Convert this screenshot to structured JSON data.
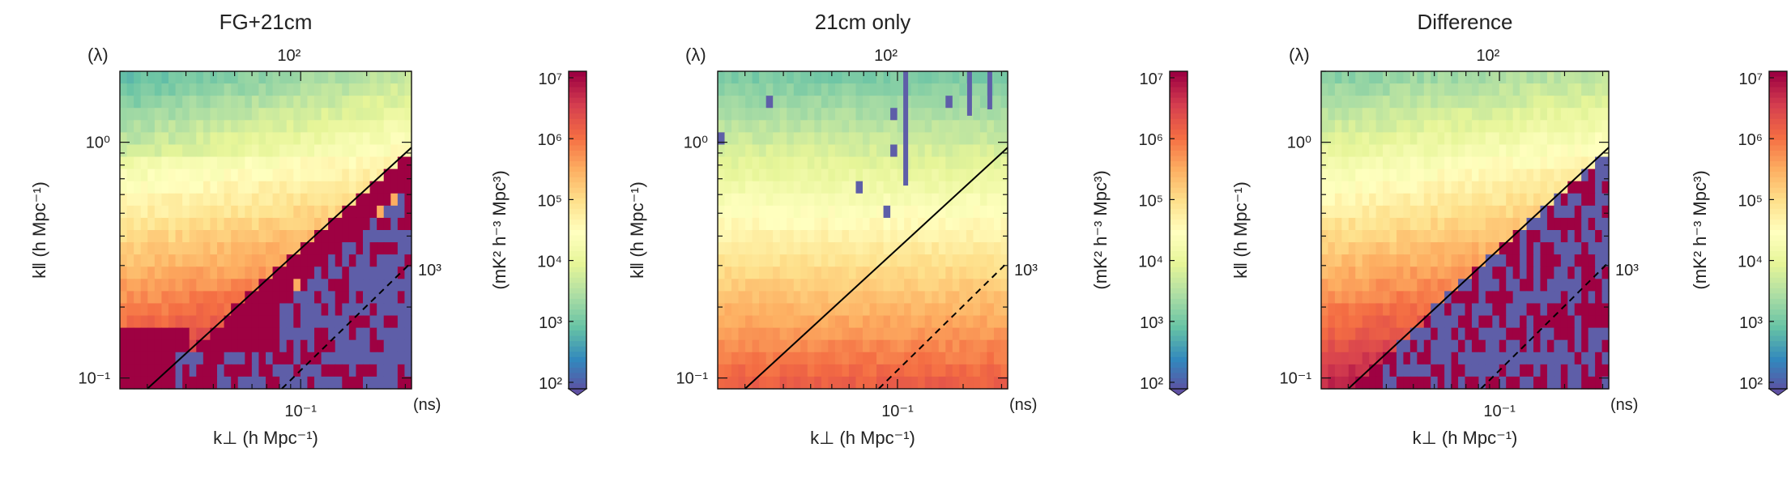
{
  "chart_data": [
    {
      "type": "heatmap",
      "title": "FG+21cm",
      "xlabel": "k⊥ (h Mpc⁻¹)",
      "ylabel": "k‖ (h Mpc⁻¹)",
      "top_axis_label": "(λ)",
      "top_tick": "10²",
      "right_tick": "10³",
      "right_axis_label": "(ns)",
      "xlim": [
        0.015,
        0.32
      ],
      "ylim": [
        0.09,
        2.0
      ],
      "x_tick": "10⁻¹",
      "y_ticks": [
        "10⁰",
        "10⁻¹"
      ],
      "colorbar_label": "(mK² h⁻³ Mpc³)",
      "colorbar_ticks": [
        "10⁷",
        "10⁶",
        "10⁵",
        "10⁴",
        "10³",
        "10²"
      ],
      "wedge_line_start": [
        0.02,
        0.09
      ],
      "wedge_line_end": [
        0.32,
        0.95
      ],
      "dashed_line_start": [
        0.082,
        0.09
      ],
      "dashed_line_end": [
        0.32,
        0.31
      ],
      "style": "fg"
    },
    {
      "type": "heatmap",
      "title": "21cm only",
      "xlabel": "k⊥ (h Mpc⁻¹)",
      "ylabel": "k‖ (h Mpc⁻¹)",
      "top_axis_label": "(λ)",
      "top_tick": "10²",
      "right_tick": "10³",
      "right_axis_label": "(ns)",
      "xlim": [
        0.015,
        0.32
      ],
      "ylim": [
        0.09,
        2.0
      ],
      "x_tick": "10⁻¹",
      "y_ticks": [
        "10⁰",
        "10⁻¹"
      ],
      "colorbar_label": "(mK² h⁻³ Mpc³)",
      "colorbar_ticks": [
        "10⁷",
        "10⁶",
        "10⁵",
        "10⁴",
        "10³",
        "10²"
      ],
      "wedge_line_start": [
        0.02,
        0.09
      ],
      "wedge_line_end": [
        0.32,
        0.95
      ],
      "dashed_line_start": [
        0.082,
        0.09
      ],
      "dashed_line_end": [
        0.32,
        0.31
      ],
      "style": "21cm"
    },
    {
      "type": "heatmap",
      "title": "Difference",
      "xlabel": "k⊥ (h Mpc⁻¹)",
      "ylabel": "k‖ (h Mpc⁻¹)",
      "top_axis_label": "(λ)",
      "top_tick": "10²",
      "right_tick": "10³",
      "right_axis_label": "(ns)",
      "xlim": [
        0.015,
        0.32
      ],
      "ylim": [
        0.09,
        2.0
      ],
      "x_tick": "10⁻¹",
      "y_ticks": [
        "10⁰",
        "10⁻¹"
      ],
      "colorbar_label": "(mK² h⁻³ Mpc³)",
      "colorbar_ticks": [
        "10⁷",
        "10⁶",
        "10⁵",
        "10⁴",
        "10³",
        "10²"
      ],
      "wedge_line_start": [
        0.02,
        0.09
      ],
      "wedge_line_end": [
        0.32,
        0.95
      ],
      "dashed_line_start": [
        0.082,
        0.09
      ],
      "dashed_line_end": [
        0.32,
        0.31
      ],
      "style": "diff"
    }
  ],
  "colormap": [
    "#5e4fa2",
    "#3288bd",
    "#66c2a5",
    "#abdda4",
    "#e6f598",
    "#ffffbf",
    "#fee08b",
    "#fdae61",
    "#f46d43",
    "#d53e4f",
    "#9e0142"
  ],
  "negative_color": "#5e5ea8",
  "saturated_color": "#9e0142"
}
